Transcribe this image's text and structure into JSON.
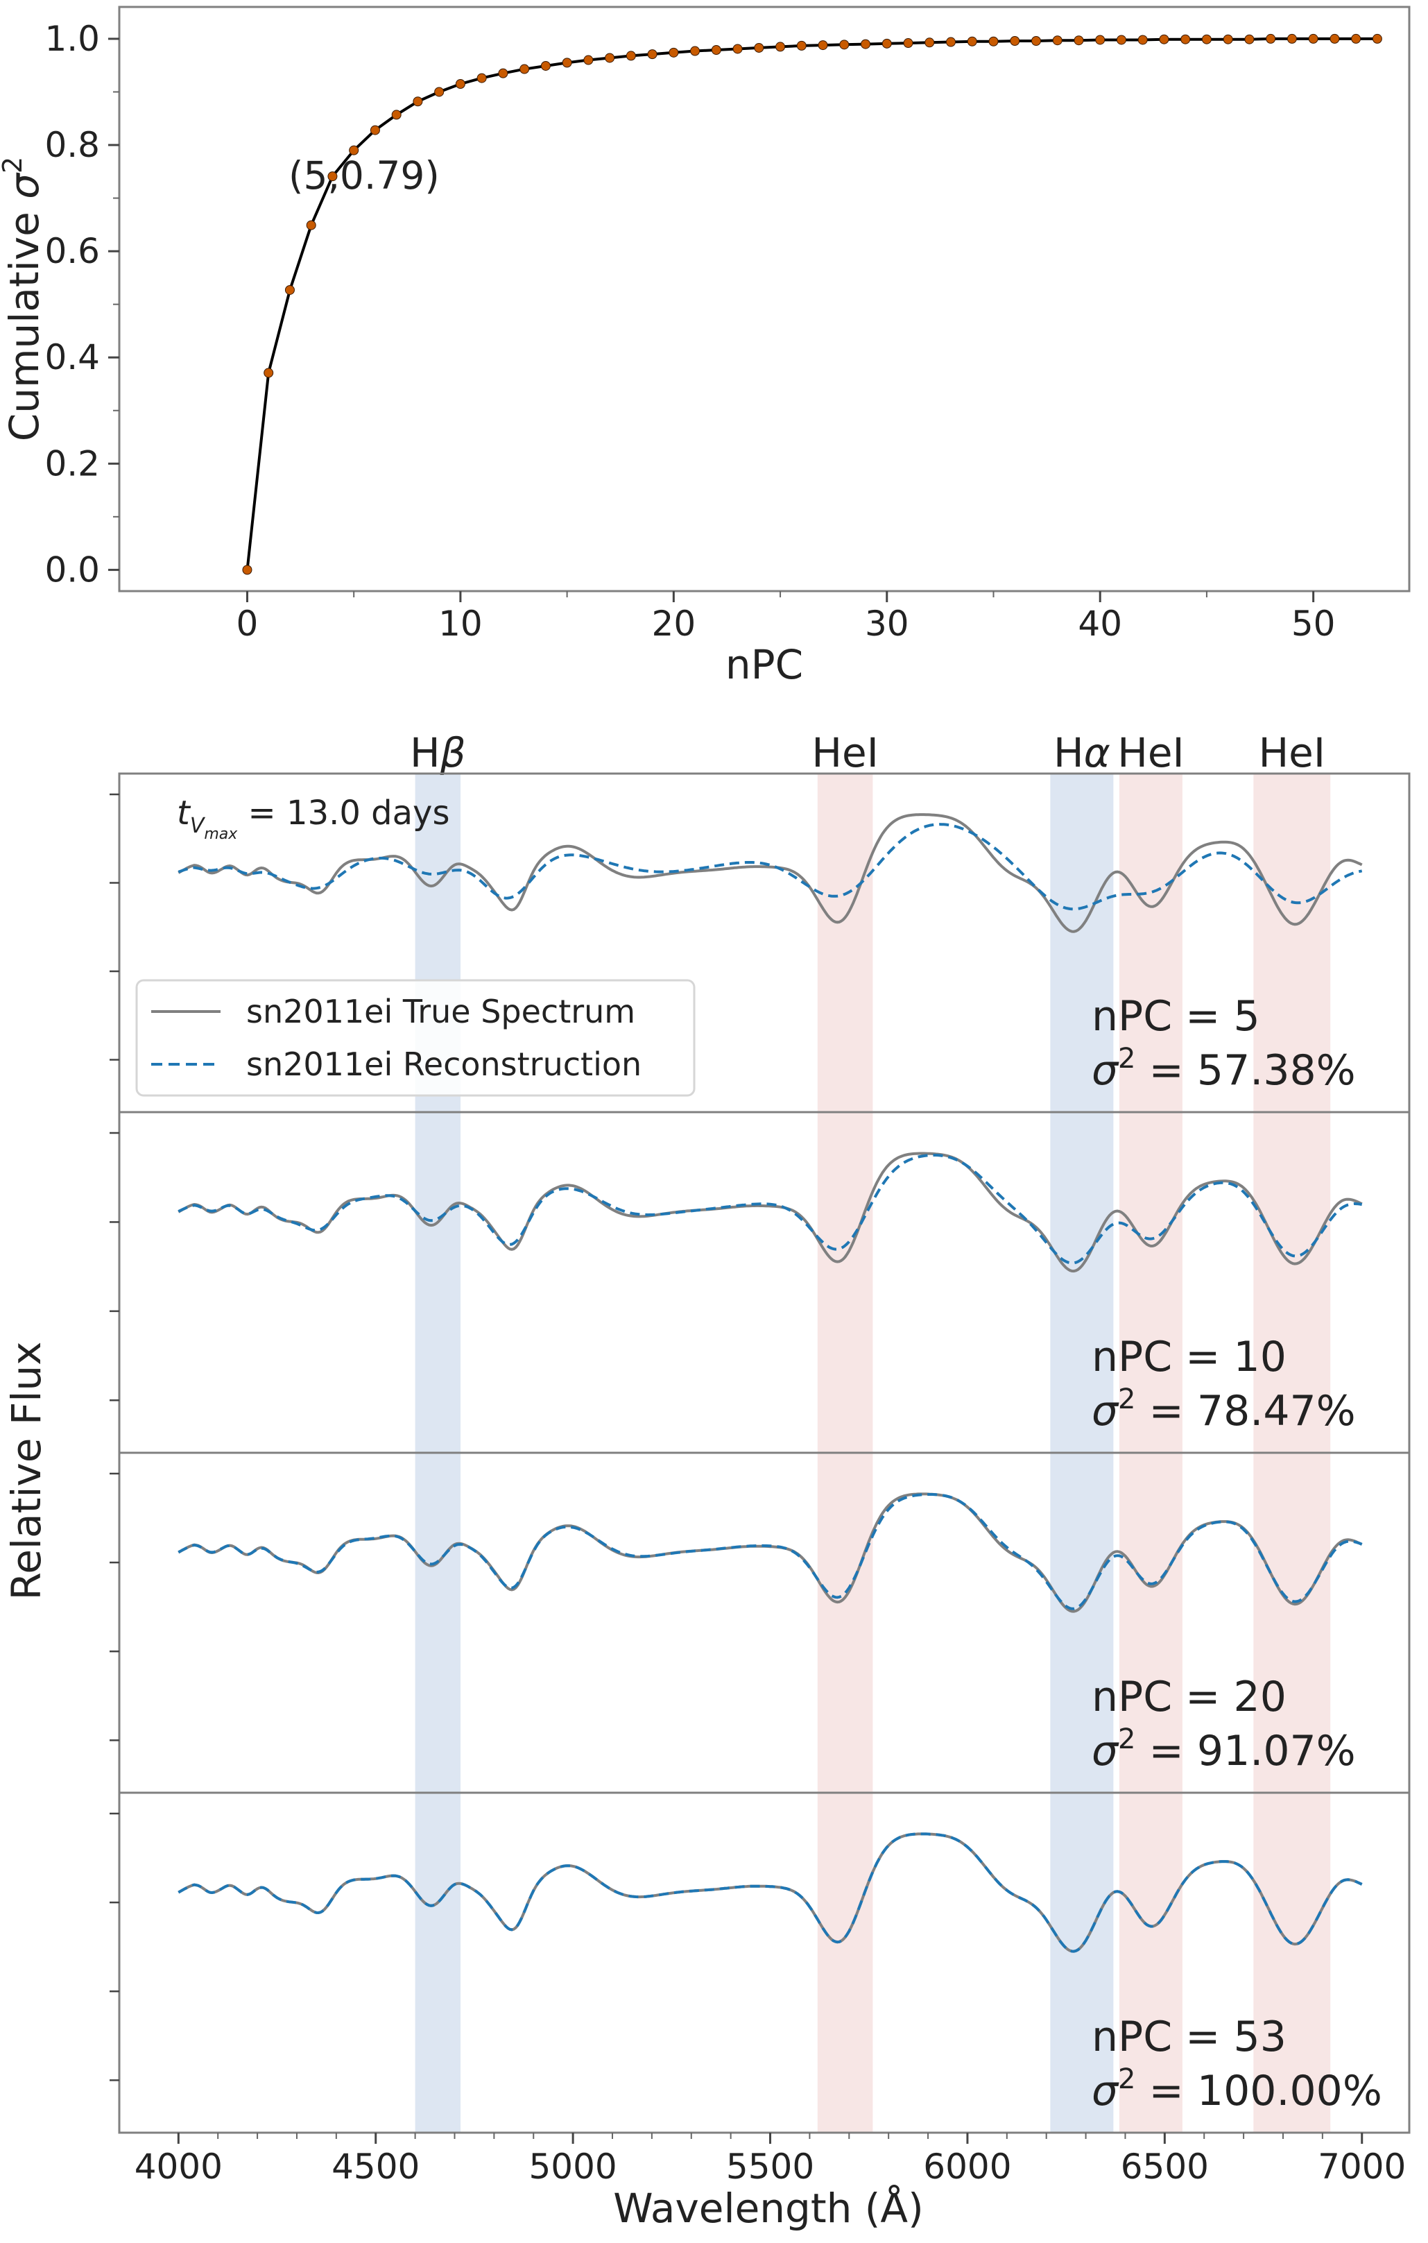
{
  "chart_data": [
    {
      "type": "line",
      "xlabel": "nPC",
      "ylabel": "Cumulative σ²",
      "xlim": [
        -6,
        54.5
      ],
      "ylim": [
        -0.04,
        1.06
      ],
      "xticks": [
        "0",
        "10",
        "20",
        "30",
        "40",
        "50"
      ],
      "yticks": [
        "0.0",
        "0.2",
        "0.4",
        "0.6",
        "0.8",
        "1.0"
      ],
      "line_color": "#000000",
      "marker_color": "#c85a00",
      "annotation": {
        "text": "(5,0.79)",
        "x": 5,
        "y": 0.79,
        "color": "#d2600c"
      },
      "x": [
        0,
        1,
        2,
        3,
        4,
        5,
        6,
        7,
        8,
        9,
        10,
        11,
        12,
        13,
        14,
        15,
        16,
        17,
        18,
        19,
        20,
        21,
        22,
        23,
        24,
        25,
        26,
        27,
        28,
        29,
        30,
        31,
        32,
        33,
        34,
        35,
        36,
        37,
        38,
        39,
        40,
        41,
        42,
        43,
        44,
        45,
        46,
        47,
        48,
        49,
        50,
        51,
        52,
        53
      ],
      "y": [
        0.0,
        0.371,
        0.527,
        0.649,
        0.741,
        0.79,
        0.828,
        0.857,
        0.882,
        0.9,
        0.915,
        0.926,
        0.935,
        0.943,
        0.949,
        0.955,
        0.96,
        0.964,
        0.968,
        0.971,
        0.974,
        0.977,
        0.979,
        0.981,
        0.983,
        0.985,
        0.987,
        0.988,
        0.989,
        0.99,
        0.991,
        0.992,
        0.993,
        0.994,
        0.995,
        0.995,
        0.996,
        0.996,
        0.997,
        0.997,
        0.998,
        0.998,
        0.998,
        0.999,
        0.999,
        0.999,
        0.999,
        0.999,
        1.0,
        1.0,
        1.0,
        1.0,
        1.0,
        1.0
      ]
    },
    {
      "type": "line",
      "xlabel": "Wavelength (Å)",
      "ylabel": "Relative Flux",
      "xlim": [
        3850,
        7120
      ],
      "xticks": [
        "4000",
        "4500",
        "5000",
        "5500",
        "6000",
        "6500",
        "7000"
      ],
      "epoch_label": "t_{V_max} = 13.0 days",
      "epoch_parts": {
        "t": "t",
        "sub_v": "V",
        "sub_max": "max",
        "rest": " = 13.0 days"
      },
      "legend": [
        "sn2011ei True Spectrum",
        "sn2011ei Reconstruction"
      ],
      "legend_position": "center-left",
      "colors": {
        "true": "#808080",
        "reconstruction": "#1f77b4",
        "hydrogen_band": "#c6d6ea",
        "helium_band": "#f1d6d4"
      },
      "bands": [
        {
          "label": "Hβ",
          "main": "H",
          "greek": "β",
          "range": [
            4600,
            4715
          ],
          "element": "hydrogen"
        },
        {
          "label": "HeI",
          "main": "HeI",
          "greek": "",
          "range": [
            5620,
            5760
          ],
          "element": "helium"
        },
        {
          "label": "Hα",
          "main": "H",
          "greek": "α",
          "range": [
            6210,
            6370
          ],
          "element": "hydrogen"
        },
        {
          "label": "HeI",
          "main": "HeI",
          "greek": "",
          "range": [
            6385,
            6545
          ],
          "element": "helium"
        },
        {
          "label": "HeI",
          "main": "HeI",
          "greek": "",
          "range": [
            6725,
            6920
          ],
          "element": "helium"
        }
      ],
      "panels": [
        {
          "npc": "nPC = 5",
          "variance": "σ² = 57.38%",
          "s2": "σ",
          "s2_rest": " = 57.38%"
        },
        {
          "npc": "nPC = 10",
          "variance": "σ² = 78.47%",
          "s2": "σ",
          "s2_rest": " = 78.47%"
        },
        {
          "npc": "nPC = 20",
          "variance": "σ² = 91.07%",
          "s2": "σ",
          "s2_rest": " = 91.07%"
        },
        {
          "npc": "nPC = 53",
          "variance": "σ² = 100.00%",
          "s2": "σ",
          "s2_rest": " = 100.00%"
        }
      ]
    }
  ]
}
